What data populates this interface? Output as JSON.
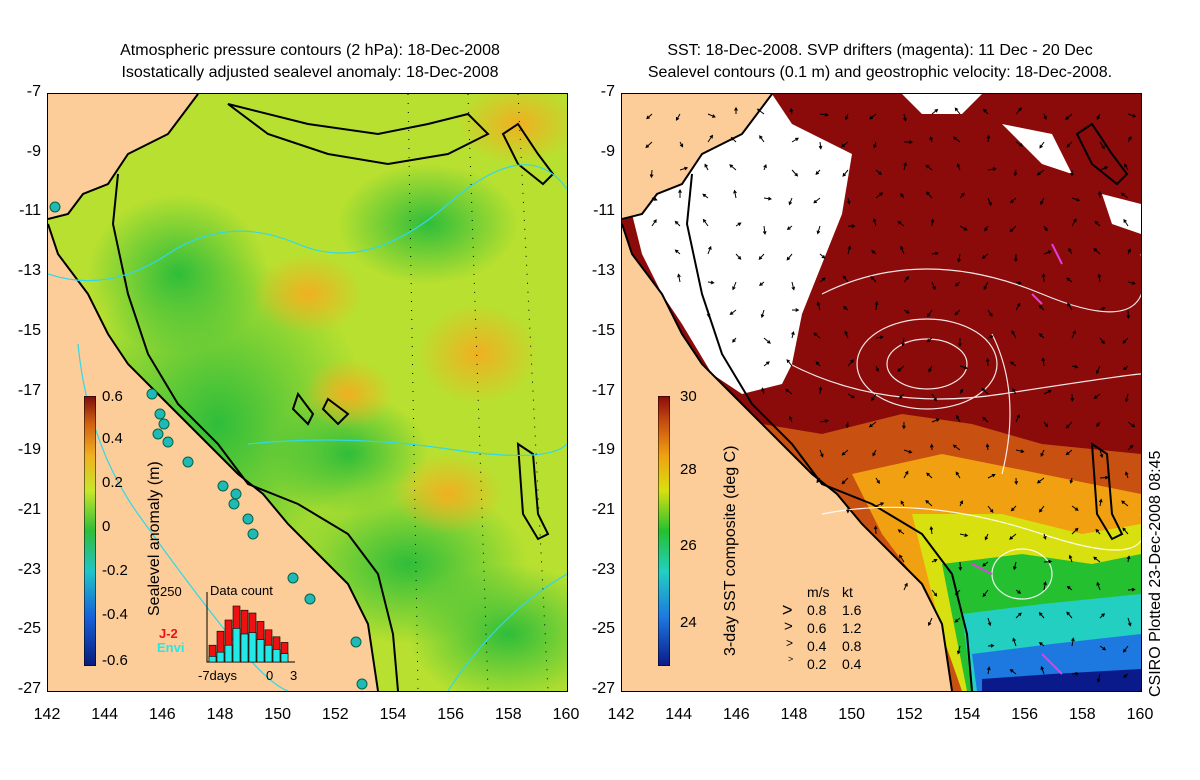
{
  "left_panel": {
    "title_line1": "Atmospheric pressure contours (2 hPa): 18-Dec-2008",
    "title_line2": "Isostatically adjusted sealevel anomaly: 18-Dec-2008",
    "colorbar_label": "Sealevel anomaly (m)",
    "colorbar_ticks": [
      "0.6",
      "0.4",
      "0.2",
      "0",
      "-0.2",
      "-0.4",
      "-0.6"
    ],
    "colors": [
      "#0a1a7a",
      "#1560d8",
      "#21c3c8",
      "#2fbd3a",
      "#c8e62a",
      "#f0b020",
      "#d06010",
      "#7a0d0d"
    ],
    "inset": {
      "title": "Data count",
      "ymax": "250",
      "xlabel_left": "-7days",
      "xlabel_mid": "0",
      "xlabel_right": "3",
      "legend_j2": "J-2",
      "legend_envi": "Envi",
      "j2_color": "#ee1111",
      "envi_color": "#22e8e8",
      "bars_total": [
        60,
        110,
        150,
        200,
        185,
        175,
        145,
        115,
        90,
        70
      ],
      "bars_envi": [
        20,
        35,
        60,
        120,
        100,
        105,
        80,
        60,
        45,
        30
      ]
    }
  },
  "right_panel": {
    "title_line1": "SST: 18-Dec-2008. SVP drifters (magenta): 11 Dec - 20 Dec",
    "title_line2": "Sealevel contours (0.1 m) and geostrophic velocity: 18-Dec-2008.",
    "colorbar_label": "3-day SST composite (deg C)",
    "colorbar_ticks": [
      "30",
      "28",
      "26",
      "24"
    ],
    "colors": [
      "#0a1a8a",
      "#1d78e0",
      "#22cfc0",
      "#25c030",
      "#d8e010",
      "#f0a010",
      "#c85010",
      "#8b0a0a"
    ],
    "velocity_legend": {
      "header_ms": "m/s",
      "header_kt": "kt",
      "rows": [
        {
          "ms": "0.8",
          "kt": "1.6"
        },
        {
          "ms": "0.6",
          "kt": "1.2"
        },
        {
          "ms": "0.4",
          "kt": "0.8"
        },
        {
          "ms": "0.2",
          "kt": "0.4"
        }
      ]
    },
    "credit": "CSIRO Plotted 23-Dec-2008 08:45"
  },
  "axes": {
    "y_ticks": [
      "-7",
      "-9",
      "-11",
      "-13",
      "-15",
      "-17",
      "-19",
      "-21",
      "-23",
      "-25",
      "-27"
    ],
    "x_ticks": [
      "142",
      "144",
      "146",
      "148",
      "150",
      "152",
      "154",
      "156",
      "158",
      "160"
    ]
  },
  "land_color": "#fccc99"
}
